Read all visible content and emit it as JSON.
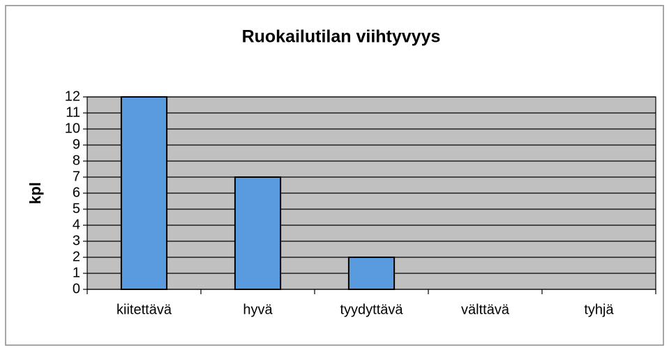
{
  "chart_data": {
    "type": "bar",
    "title": "Ruokailutilan viihtyvyys",
    "y_label": "kpl",
    "categories": [
      "kiitettävä",
      "hyvä",
      "tyydyttävä",
      "välttävä",
      "tyhjä"
    ],
    "values": [
      12,
      7,
      2,
      0,
      0
    ],
    "color": "#5a9be0",
    "ylim": [
      0,
      12
    ],
    "yticks": [
      0,
      1,
      2,
      3,
      4,
      5,
      6,
      7,
      8,
      9,
      10,
      11,
      12
    ],
    "grid": true
  }
}
